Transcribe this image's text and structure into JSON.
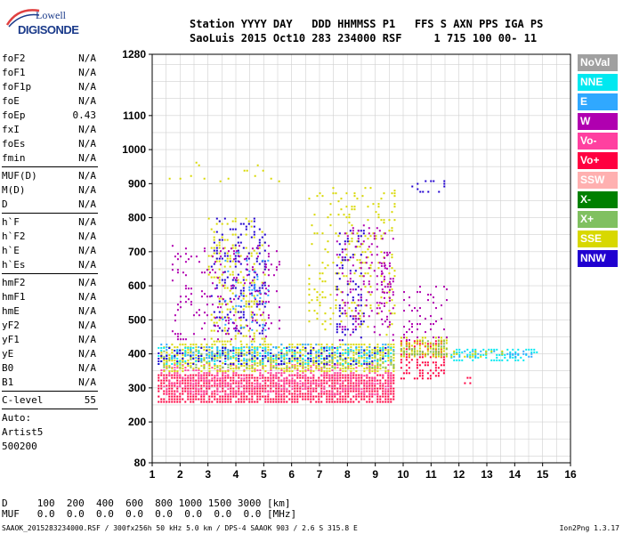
{
  "logo": {
    "line1": "Lowell",
    "line2": "DIGISONDE"
  },
  "header": {
    "line1": "Station YYYY DAY   DDD HHMMSS P1   FFS S AXN PPS IGA PS",
    "line2": "SaoLuis 2015 Oct10 283 234000 RSF     1 715 100 00- 11"
  },
  "params": [
    [
      {
        "name": "foF2",
        "value": "N/A"
      },
      {
        "name": "foF1",
        "value": "N/A"
      },
      {
        "name": "foF1p",
        "value": "N/A"
      },
      {
        "name": "foE",
        "value": "N/A"
      },
      {
        "name": "foEp",
        "value": "0.43"
      },
      {
        "name": "fxI",
        "value": "N/A"
      },
      {
        "name": "foEs",
        "value": "N/A"
      },
      {
        "name": "fmin",
        "value": "N/A"
      }
    ],
    [
      {
        "name": "MUF(D)",
        "value": "N/A"
      },
      {
        "name": "M(D)",
        "value": "N/A"
      },
      {
        "name": "D",
        "value": "N/A"
      }
    ],
    [
      {
        "name": "h`F",
        "value": "N/A"
      },
      {
        "name": "h`F2",
        "value": "N/A"
      },
      {
        "name": "h`E",
        "value": "N/A"
      },
      {
        "name": "h`Es",
        "value": "N/A"
      }
    ],
    [
      {
        "name": "hmF2",
        "value": "N/A"
      },
      {
        "name": "hmF1",
        "value": "N/A"
      },
      {
        "name": "hmE",
        "value": "N/A"
      },
      {
        "name": "yF2",
        "value": "N/A"
      },
      {
        "name": "yF1",
        "value": "N/A"
      },
      {
        "name": "yE",
        "value": "N/A"
      },
      {
        "name": "B0",
        "value": "N/A"
      },
      {
        "name": "B1",
        "value": "N/A"
      }
    ],
    [
      {
        "name": "C-level",
        "value": "55"
      }
    ]
  ],
  "auto": {
    "line1": "Auto:",
    "line2": "Artist5",
    "line3": "500200"
  },
  "legend": [
    {
      "label": "NoVal",
      "color": "#a0a0a0"
    },
    {
      "label": "NNE",
      "color": "#00e8f0"
    },
    {
      "label": "E",
      "color": "#30a8ff"
    },
    {
      "label": "W",
      "color": "#b000b0"
    },
    {
      "label": "Vo-",
      "color": "#ff40a0"
    },
    {
      "label": "Vo+",
      "color": "#ff0040"
    },
    {
      "label": "SSW",
      "color": "#ffb0b0"
    },
    {
      "label": "X-",
      "color": "#008000"
    },
    {
      "label": "X+",
      "color": "#80c060"
    },
    {
      "label": "SSE",
      "color": "#d8d800"
    },
    {
      "label": "NNW",
      "color": "#2000d0"
    }
  ],
  "bottom": {
    "d_line": "D     100  200  400  600  800 1000 1500 3000 [km]",
    "muf_line": "MUF   0.0  0.0  0.0  0.0  0.0  0.0  0.0  0.0 [MHz]"
  },
  "footer": "SAAOK_2015283234000.RSF / 300fx256h 50 kHz 5.0 km / DPS-4 SAAOK 903 / 2.6 S 315.8 E",
  "version": "Ion2Png 1.3.17",
  "chart_data": {
    "type": "scatter",
    "xlim": [
      1,
      16
    ],
    "ylim": [
      80,
      1280
    ],
    "x_ticks": [
      1,
      2,
      3,
      4,
      5,
      6,
      7,
      8,
      9,
      10,
      11,
      12,
      13,
      14,
      15,
      16
    ],
    "x_tick_labels": [
      "1",
      "2",
      "3",
      "4",
      "5",
      "6",
      "7",
      "8",
      "9",
      "10",
      "11",
      "12",
      "13",
      "14",
      "15",
      "16"
    ],
    "y_ticks": [
      80,
      200,
      300,
      400,
      500,
      600,
      700,
      800,
      900,
      1000,
      1100,
      1280
    ],
    "y_tick_labels": [
      "80",
      "200",
      "300",
      "400",
      "500",
      "600",
      "700",
      "800",
      "900",
      "1000",
      "1100",
      "1280"
    ],
    "grid": true,
    "xlabel": "",
    "ylabel": "",
    "regions": [
      {
        "name": "Vo+",
        "x": [
          1.2,
          9.8
        ],
        "y": [
          250,
          340
        ],
        "density": 0.75
      },
      {
        "name": "Vo-",
        "x": [
          1.3,
          9.8
        ],
        "y": [
          270,
          370
        ],
        "density": 0.35
      },
      {
        "name": "Vo+",
        "x": [
          9.9,
          11.6
        ],
        "y": [
          320,
          440
        ],
        "density": 0.45
      },
      {
        "name": "SSE",
        "x": [
          1.3,
          9.8
        ],
        "y": [
          340,
          430
        ],
        "density": 0.55
      },
      {
        "name": "X+",
        "x": [
          1.3,
          9.8
        ],
        "y": [
          350,
          410
        ],
        "density": 0.25
      },
      {
        "name": "NNE",
        "x": [
          1.2,
          9.8
        ],
        "y": [
          360,
          420
        ],
        "density": 0.25
      },
      {
        "name": "E",
        "x": [
          1.2,
          9.8
        ],
        "y": [
          370,
          430
        ],
        "density": 0.2
      },
      {
        "name": "NNW",
        "x": [
          1.2,
          9.8
        ],
        "y": [
          360,
          420
        ],
        "density": 0.18
      },
      {
        "name": "SSE",
        "x": [
          9.9,
          11.7
        ],
        "y": [
          380,
          450
        ],
        "density": 0.55
      },
      {
        "name": "X+",
        "x": [
          9.9,
          11.7
        ],
        "y": [
          390,
          440
        ],
        "density": 0.25
      },
      {
        "name": "NNE",
        "x": [
          11.7,
          14.9
        ],
        "y": [
          375,
          415
        ],
        "density": 0.4
      },
      {
        "name": "E",
        "x": [
          11.7,
          14.8
        ],
        "y": [
          380,
          410
        ],
        "density": 0.3
      },
      {
        "name": "SSE",
        "x": [
          11.7,
          13.9
        ],
        "y": [
          380,
          410
        ],
        "density": 0.2
      },
      {
        "name": "Vo+",
        "x": [
          11.8,
          12.5
        ],
        "y": [
          300,
          340
        ],
        "density": 0.2
      },
      {
        "name": "SSE",
        "x": [
          3.0,
          5.2
        ],
        "y": [
          430,
          800
        ],
        "density": 0.18
      },
      {
        "name": "NNW",
        "x": [
          3.1,
          5.2
        ],
        "y": [
          450,
          800
        ],
        "density": 0.18
      },
      {
        "name": "W",
        "x": [
          1.7,
          5.8
        ],
        "y": [
          430,
          720
        ],
        "density": 0.12
      },
      {
        "name": "E",
        "x": [
          3.5,
          5.3
        ],
        "y": [
          460,
          700
        ],
        "density": 0.08
      },
      {
        "name": "SSE",
        "x": [
          6.6,
          9.8
        ],
        "y": [
          450,
          890
        ],
        "density": 0.12
      },
      {
        "name": "NNW",
        "x": [
          7.6,
          8.7
        ],
        "y": [
          430,
          780
        ],
        "density": 0.15
      },
      {
        "name": "W",
        "x": [
          7.6,
          9.8
        ],
        "y": [
          430,
          780
        ],
        "density": 0.12
      },
      {
        "name": "W",
        "x": [
          10.0,
          11.7
        ],
        "y": [
          430,
          600
        ],
        "density": 0.12
      },
      {
        "name": "SSE",
        "x": [
          1.5,
          5.8
        ],
        "y": [
          900,
          980
        ],
        "density": 0.03
      },
      {
        "name": "NNW",
        "x": [
          10.2,
          11.6
        ],
        "y": [
          870,
          910
        ],
        "density": 0.15
      },
      {
        "name": "W",
        "x": [
          9.2,
          9.6
        ],
        "y": [
          460,
          700
        ],
        "density": 0.3
      }
    ]
  }
}
